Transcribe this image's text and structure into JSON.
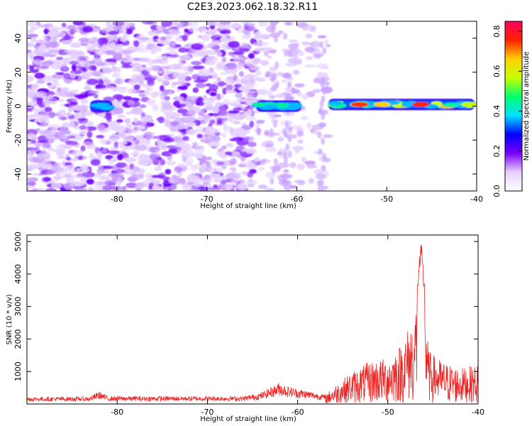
{
  "page_title": "C2E3.2023.062.18.32.R11",
  "chart_data": [
    {
      "type": "heatmap",
      "xlabel": "Height of straight line (km)",
      "ylabel": "Frequency (Hz)",
      "xlim": [
        -90,
        -40
      ],
      "ylim": [
        -50,
        50
      ],
      "x_ticks": [
        -80,
        -70,
        -60,
        -50,
        -40
      ],
      "y_ticks": [
        -40,
        -20,
        0,
        20,
        40
      ],
      "colorbar": {
        "label": "Normalized spectral amplitude",
        "range": [
          0,
          0.85
        ],
        "ticks": [
          0.0,
          0.2,
          0.4,
          0.6,
          0.8
        ],
        "colors": [
          "#ffffff",
          "#e8d0ff",
          "#7a00ff",
          "#0000ff",
          "#00e0ff",
          "#00ff70",
          "#c8ff00",
          "#ffd000",
          "#ff2000",
          "#ff0060"
        ]
      },
      "signal_segments": [
        {
          "x": [
            -83,
            -80.5
          ],
          "frequency_hz": 0,
          "peak_amplitude": 0.3
        },
        {
          "x": [
            -64.5,
            -59.5
          ],
          "frequency_hz": 0,
          "peak_amplitude": 0.4
        },
        {
          "x": [
            -56.5,
            -40.2
          ],
          "frequency_hz": 1,
          "peak_amplitude": 0.8
        }
      ],
      "noise_regions": [
        {
          "x": [
            -90,
            -64.5
          ],
          "density": "high"
        },
        {
          "x": [
            -64.5,
            -56.5
          ],
          "density": "low"
        }
      ]
    },
    {
      "type": "line",
      "xlabel": "Height of straight line (km)",
      "ylabel": "SNR (10 * v/v)",
      "xlim": [
        -90,
        -40
      ],
      "ylim": [
        0,
        5200
      ],
      "x_ticks": [
        -80,
        -70,
        -60,
        -50,
        -40
      ],
      "y_ticks": [
        1000,
        2000,
        3000,
        4000,
        5000
      ],
      "color": "#ee2222",
      "profile": [
        {
          "x": -90,
          "y": 180
        },
        {
          "x": -83,
          "y": 190
        },
        {
          "x": -82,
          "y": 330
        },
        {
          "x": -81,
          "y": 200
        },
        {
          "x": -66,
          "y": 200
        },
        {
          "x": -64,
          "y": 300
        },
        {
          "x": -62,
          "y": 560
        },
        {
          "x": -61,
          "y": 450
        },
        {
          "x": -57,
          "y": 250
        },
        {
          "x": -55.5,
          "y": 600
        },
        {
          "x": -54,
          "y": 900
        },
        {
          "x": -52,
          "y": 1200
        },
        {
          "x": -50,
          "y": 1300
        },
        {
          "x": -48.5,
          "y": 1700
        },
        {
          "x": -47.5,
          "y": 2300
        },
        {
          "x": -47,
          "y": 2500
        },
        {
          "x": -46.6,
          "y": 4400
        },
        {
          "x": -46.3,
          "y": 5000
        },
        {
          "x": -46.0,
          "y": 4000
        },
        {
          "x": -45.5,
          "y": 1500
        },
        {
          "x": -44,
          "y": 1200
        },
        {
          "x": -42,
          "y": 1000
        },
        {
          "x": -40,
          "y": 1100
        }
      ]
    }
  ]
}
